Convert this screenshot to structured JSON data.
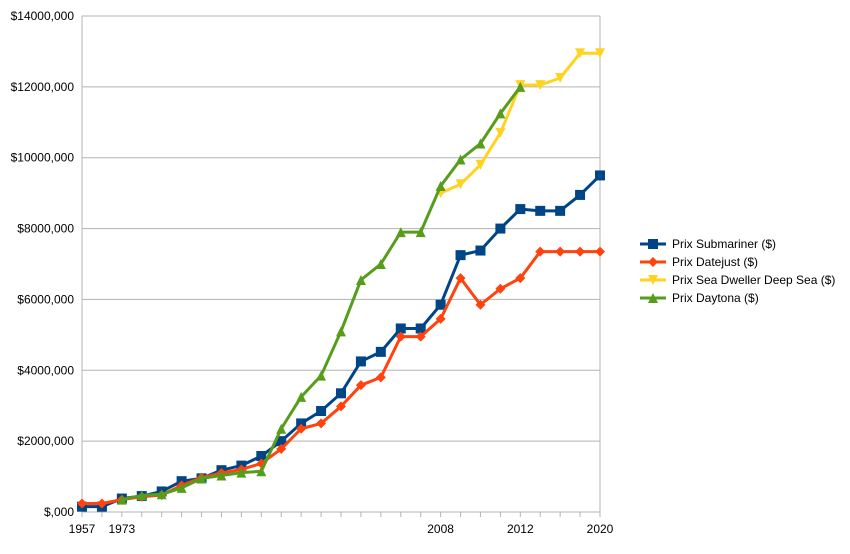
{
  "chart_data": {
    "type": "line",
    "title": "",
    "xlabel": "",
    "ylabel": "",
    "ylim": [
      0,
      14000
    ],
    "yticks": [
      0,
      2000,
      4000,
      6000,
      8000,
      10000,
      12000,
      14000
    ],
    "ytick_labels": [
      "$,000",
      "$2000,000",
      "$4000,000",
      "$6000,000",
      "$8000,000",
      "$10000,000",
      "$12000,000",
      "$14000,000"
    ],
    "categories": [
      "1957",
      "",
      "1973",
      "",
      "",
      "",
      "",
      "",
      "",
      "",
      "",
      "",
      "",
      "",
      "",
      "",
      "",
      "",
      "2008",
      "",
      "",
      "",
      "2012",
      "",
      "",
      "",
      "2020"
    ],
    "grid": true,
    "legend_position": "right",
    "series": [
      {
        "name": "Prix Submariner ($)",
        "color": "#004586",
        "marker": "square",
        "values": [
          150,
          150,
          380,
          450,
          580,
          870,
          950,
          1180,
          1310,
          1580,
          2000,
          2500,
          2850,
          3350,
          4250,
          4520,
          5180,
          5180,
          5850,
          7250,
          7380,
          8000,
          8550,
          8500,
          8500,
          8950,
          9500
        ]
      },
      {
        "name": "Prix Datejust ($)",
        "color": "#ff420e",
        "marker": "diamond",
        "values": [
          240,
          240,
          350,
          430,
          480,
          750,
          970,
          1100,
          1200,
          1370,
          1780,
          2350,
          2500,
          2980,
          3580,
          3800,
          4950,
          4950,
          5450,
          6600,
          5850,
          6300,
          6600,
          7350,
          7350,
          7350,
          7350
        ]
      },
      {
        "name": "Prix Sea Dweller Deep Sea ($)",
        "color": "#ffd320",
        "marker": "triangle-down",
        "values": [
          null,
          null,
          null,
          null,
          null,
          null,
          null,
          null,
          null,
          null,
          null,
          null,
          null,
          null,
          null,
          null,
          null,
          null,
          9000,
          9250,
          9800,
          10700,
          12050,
          12050,
          12250,
          12950,
          12950
        ]
      },
      {
        "name": "Prix Daytona ($)",
        "color": "#579d1c",
        "marker": "triangle-up",
        "values": [
          null,
          null,
          350,
          470,
          500,
          680,
          950,
          1030,
          1110,
          1150,
          2350,
          3250,
          3850,
          5100,
          6550,
          7000,
          7900,
          7900,
          9200,
          9950,
          10400,
          11250,
          12000,
          null,
          null,
          null,
          null
        ]
      }
    ]
  }
}
